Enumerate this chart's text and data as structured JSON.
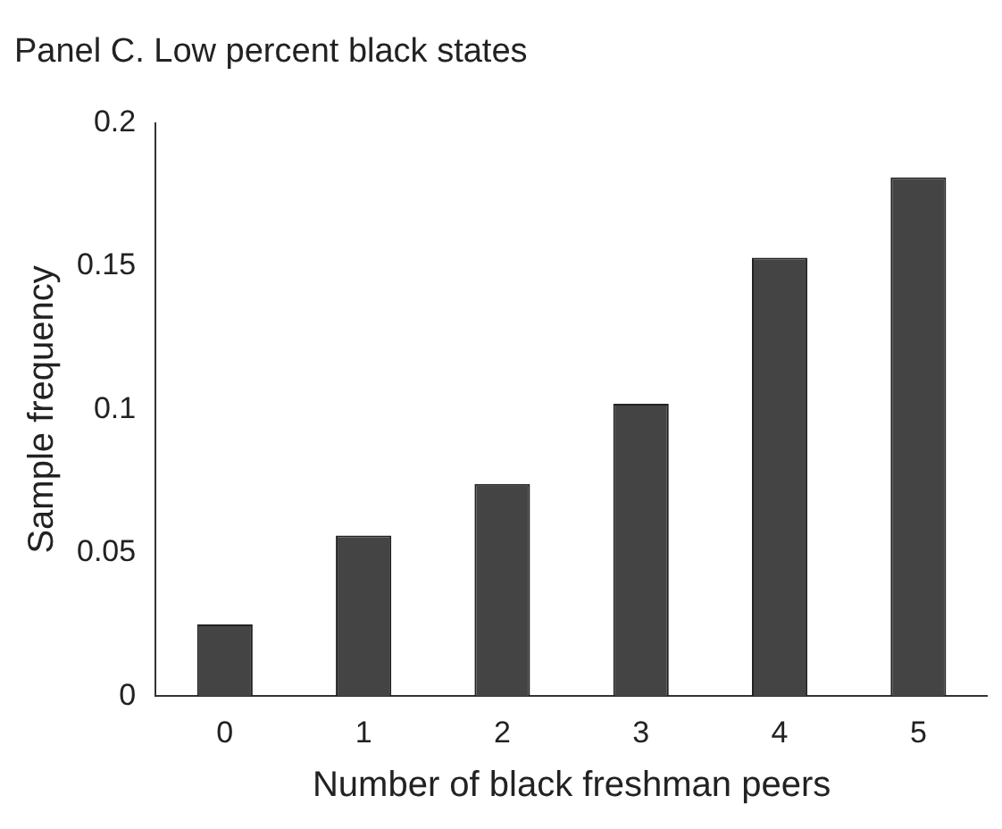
{
  "chart_data": {
    "type": "bar",
    "title": "Panel C. Low percent black states",
    "xlabel": "Number of black freshman peers",
    "ylabel": "Sample frequency",
    "categories": [
      "0",
      "1",
      "2",
      "3",
      "4",
      "5"
    ],
    "values": [
      0.025,
      0.056,
      0.074,
      0.102,
      0.153,
      0.181
    ],
    "color": "#444444",
    "ylim": [
      0,
      0.2
    ],
    "yticks": [
      0,
      0.05,
      0.1,
      0.15,
      0.2
    ],
    "grid": false,
    "legend": false
  }
}
